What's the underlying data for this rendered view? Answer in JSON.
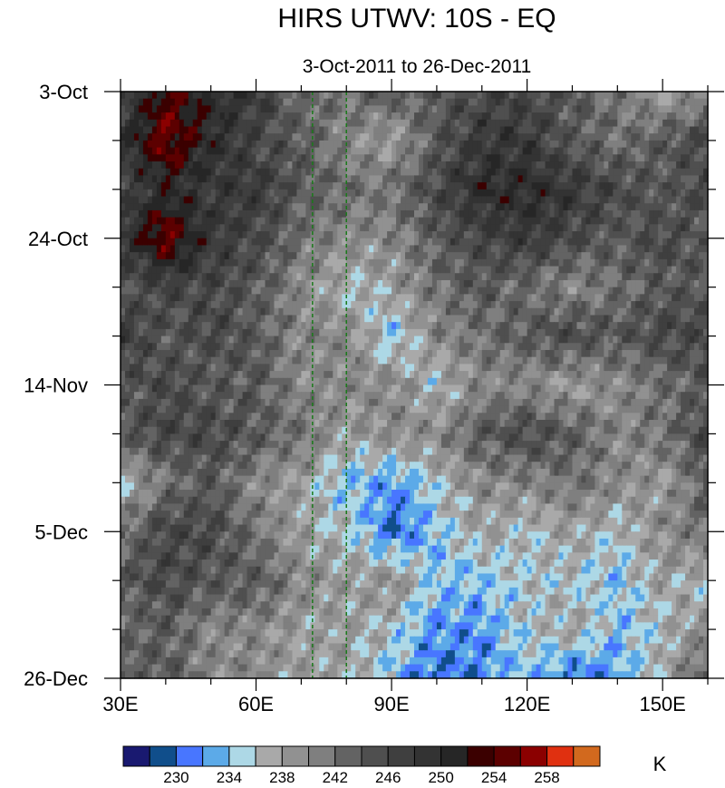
{
  "chart_data": {
    "type": "heatmap",
    "title": "HIRS UTWV: 10S - EQ",
    "subtitle": "3-Oct-2011 to 26-Dec-2011",
    "xlabel": "",
    "ylabel": "",
    "xlim": [
      30,
      160
    ],
    "ylim_days": [
      0,
      84
    ],
    "x_ticks": [
      {
        "value": 30,
        "label": "30E"
      },
      {
        "value": 60,
        "label": "60E"
      },
      {
        "value": 90,
        "label": "90E"
      },
      {
        "value": 120,
        "label": "120E"
      },
      {
        "value": 150,
        "label": "150E"
      }
    ],
    "y_ticks": [
      {
        "value": 0,
        "label": "3-Oct"
      },
      {
        "value": 21,
        "label": "24-Oct"
      },
      {
        "value": 42,
        "label": "14-Nov"
      },
      {
        "value": 63,
        "label": "5-Dec"
      },
      {
        "value": 84,
        "label": "26-Dec"
      }
    ],
    "reference_lines_lon": [
      72.5,
      80
    ],
    "reference_line_color": "#1a7a1a",
    "grid_lon": [
      30,
      40,
      50,
      60,
      70,
      80,
      90,
      100,
      110,
      120,
      130,
      140,
      150,
      160
    ],
    "grid_day": [
      0,
      7,
      14,
      21,
      28,
      35,
      42,
      49,
      56,
      63,
      70,
      77,
      84
    ],
    "values": [
      [
        246,
        254,
        250,
        248,
        242,
        242,
        244,
        244,
        246,
        246,
        244,
        242,
        238,
        240
      ],
      [
        248,
        256,
        250,
        246,
        244,
        240,
        238,
        244,
        248,
        248,
        244,
        242,
        244,
        246
      ],
      [
        246,
        250,
        248,
        248,
        244,
        242,
        242,
        246,
        250,
        250,
        248,
        246,
        244,
        246
      ],
      [
        248,
        256,
        248,
        246,
        242,
        240,
        240,
        244,
        246,
        248,
        246,
        244,
        246,
        244
      ],
      [
        244,
        246,
        246,
        244,
        240,
        236,
        238,
        242,
        244,
        242,
        240,
        242,
        244,
        244
      ],
      [
        248,
        244,
        246,
        244,
        240,
        240,
        234,
        240,
        242,
        244,
        246,
        244,
        246,
        246
      ],
      [
        244,
        246,
        244,
        244,
        240,
        240,
        240,
        236,
        240,
        240,
        238,
        240,
        242,
        244
      ],
      [
        244,
        246,
        246,
        244,
        242,
        238,
        240,
        240,
        244,
        246,
        244,
        240,
        242,
        246
      ],
      [
        236,
        242,
        244,
        240,
        238,
        234,
        232,
        236,
        240,
        240,
        242,
        240,
        238,
        244
      ],
      [
        242,
        246,
        246,
        242,
        238,
        236,
        230,
        234,
        238,
        236,
        238,
        236,
        240,
        242
      ],
      [
        244,
        246,
        244,
        244,
        240,
        238,
        240,
        234,
        234,
        236,
        236,
        234,
        238,
        236
      ],
      [
        242,
        244,
        240,
        240,
        238,
        238,
        236,
        232,
        232,
        236,
        238,
        234,
        236,
        240
      ],
      [
        244,
        244,
        240,
        240,
        238,
        238,
        234,
        230,
        232,
        234,
        230,
        232,
        238,
        244
      ]
    ],
    "colorbar": {
      "levels": [
        228,
        230,
        232,
        234,
        236,
        238,
        240,
        242,
        244,
        246,
        248,
        250,
        252,
        254,
        256,
        258,
        260
      ],
      "colors": [
        "#191970",
        "#104e8b",
        "#4876ff",
        "#5caae8",
        "#add8e6",
        "#a9a9a9",
        "#919191",
        "#7f7f7f",
        "#636363",
        "#4f4f4f",
        "#3f3f3f",
        "#333333",
        "#262626",
        "#3b0000",
        "#5c0000",
        "#8b0000",
        "#e03010",
        "#d2691e"
      ],
      "labels": [
        "230",
        "234",
        "238",
        "242",
        "246",
        "250",
        "254",
        "258"
      ],
      "label_values": [
        230,
        234,
        238,
        242,
        246,
        250,
        254,
        258
      ],
      "units": "K"
    }
  }
}
